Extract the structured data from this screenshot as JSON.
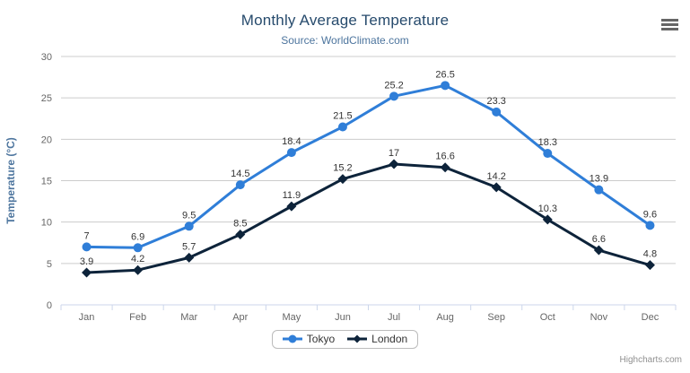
{
  "credit": "Highcharts.com",
  "toolbar": {
    "context_menu_icon": "hamburger-menu-icon"
  },
  "chart_data": {
    "type": "line",
    "title": "Monthly Average Temperature",
    "subtitle": "Source: WorldClimate.com",
    "ylabel": "Temperature (°C)",
    "xlabel": "",
    "ylim": [
      0,
      30
    ],
    "yticks": [
      0,
      5,
      10,
      15,
      20,
      25,
      30
    ],
    "grid": true,
    "data_labels": true,
    "legend_position": "bottom",
    "categories": [
      "Jan",
      "Feb",
      "Mar",
      "Apr",
      "May",
      "Jun",
      "Jul",
      "Aug",
      "Sep",
      "Oct",
      "Nov",
      "Dec"
    ],
    "series": [
      {
        "name": "Tokyo",
        "color": "#2f7ed8",
        "marker": "circle",
        "values": [
          7,
          6.9,
          9.5,
          14.5,
          18.4,
          21.5,
          25.2,
          26.5,
          23.3,
          18.3,
          13.9,
          9.6
        ]
      },
      {
        "name": "London",
        "color": "#0d233a",
        "marker": "diamond",
        "values": [
          3.9,
          4.2,
          5.7,
          8.5,
          11.9,
          15.2,
          17,
          16.6,
          14.2,
          10.3,
          6.6,
          4.8
        ]
      }
    ],
    "colors": {
      "title": "#274b6d",
      "subtitle": "#4d759e",
      "axis_title": "#4d759e",
      "tick_label": "#666666",
      "grid_line": "#cccccc",
      "axis_line": "#ccd6eb",
      "data_label": "#333333",
      "legend_text": "#333333",
      "credit": "#909090"
    }
  }
}
